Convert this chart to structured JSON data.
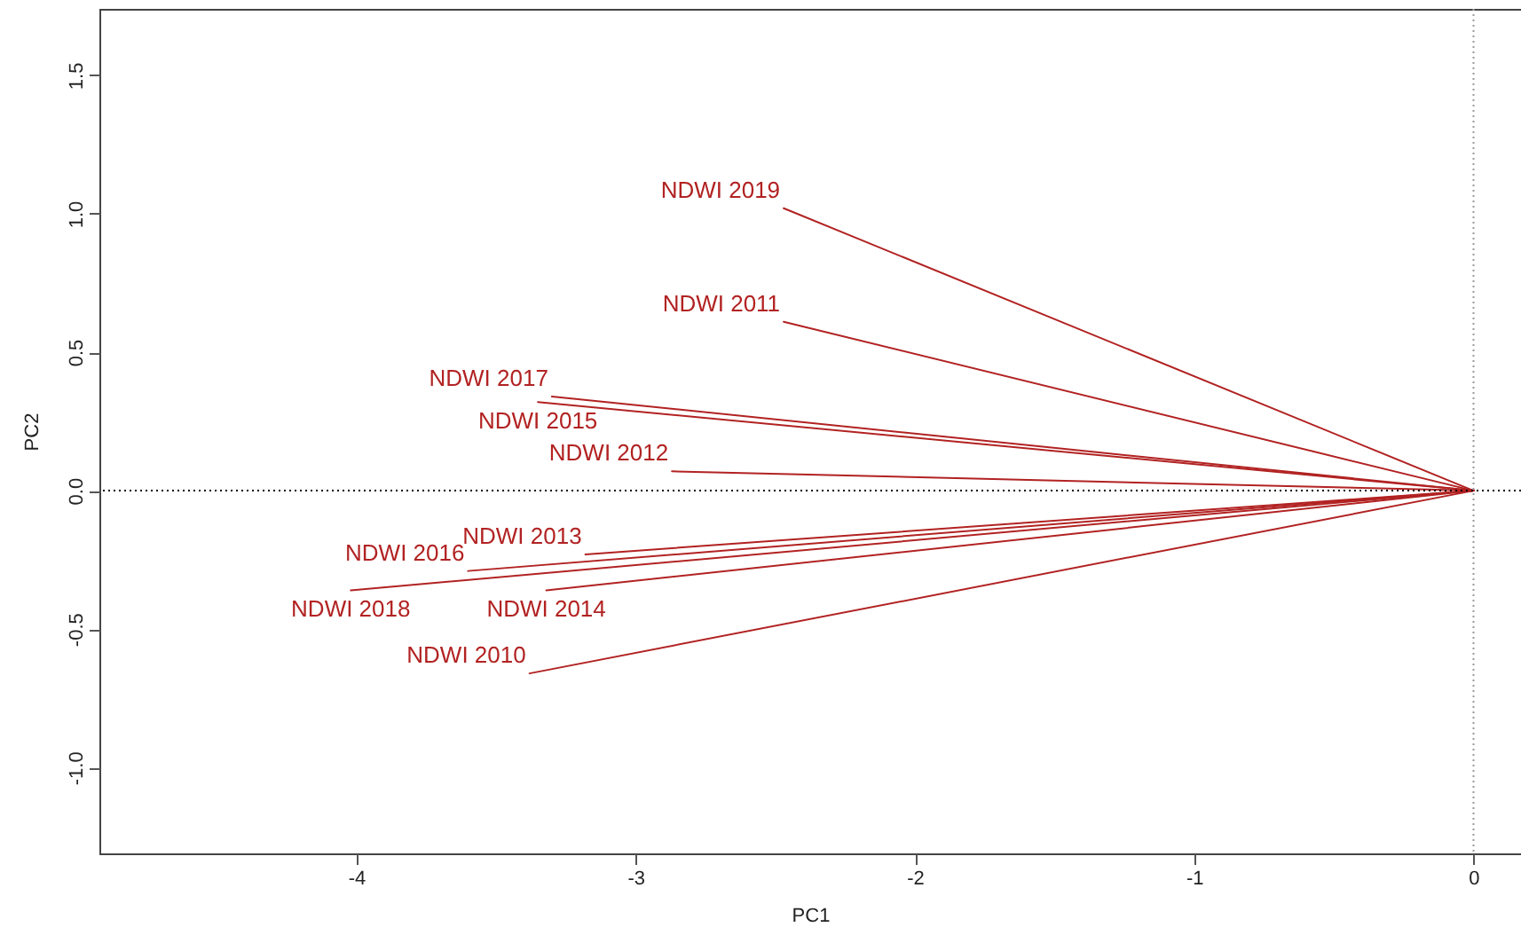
{
  "chart_data": {
    "type": "line",
    "xlabel": "PC1",
    "ylabel": "PC2",
    "xlim": [
      -4.92,
      0.17
    ],
    "ylim": [
      -1.31,
      1.74
    ],
    "xticks": [
      -4,
      -3,
      -2,
      -1,
      0
    ],
    "yticks": [
      {
        "value": -1,
        "label": "-1.0"
      },
      {
        "value": -0.5,
        "label": "-0.5"
      },
      {
        "value": 0,
        "label": "0.0"
      },
      {
        "value": 0.5,
        "label": "0.5"
      },
      {
        "value": 1,
        "label": "1.0"
      },
      {
        "value": 1.5,
        "label": "1.5"
      }
    ],
    "grid": false,
    "ref_lines": [
      {
        "axis": "y",
        "value": 0,
        "color": "#000000",
        "line_style": "dotted"
      },
      {
        "axis": "x",
        "value": 0,
        "color": "#999999",
        "line_style": "dotted"
      }
    ],
    "series": [
      {
        "name": "NDWI 2019",
        "color": "#b22222",
        "x": [
          0,
          -2.47
        ],
        "values": [
          0,
          1.02
        ]
      },
      {
        "name": "NDWI 2011",
        "color": "#b22222",
        "x": [
          0,
          -2.47
        ],
        "values": [
          0,
          0.61
        ]
      },
      {
        "name": "NDWI 2017",
        "color": "#b22222",
        "x": [
          0,
          -3.3
        ],
        "values": [
          0,
          0.34
        ]
      },
      {
        "name": "NDWI 2015",
        "color": "#b22222",
        "x": [
          0,
          -3.35
        ],
        "values": [
          0,
          0.32
        ]
      },
      {
        "name": "NDWI 2012",
        "color": "#b22222",
        "x": [
          0,
          -2.87
        ],
        "values": [
          0,
          0.07
        ]
      },
      {
        "name": "NDWI 2013",
        "color": "#b22222",
        "x": [
          0,
          -3.18
        ],
        "values": [
          0,
          -0.23
        ]
      },
      {
        "name": "NDWI 2016",
        "color": "#b22222",
        "x": [
          0,
          -3.6
        ],
        "values": [
          0,
          -0.29
        ]
      },
      {
        "name": "NDWI 2018",
        "color": "#b22222",
        "x": [
          0,
          -4.02
        ],
        "values": [
          0,
          -0.36
        ]
      },
      {
        "name": "NDWI 2014",
        "color": "#b22222",
        "x": [
          0,
          -3.32
        ],
        "values": [
          0,
          -0.36
        ]
      },
      {
        "name": "NDWI 2010",
        "color": "#b22222",
        "x": [
          0,
          -3.38
        ],
        "values": [
          0,
          -0.66
        ]
      }
    ]
  }
}
